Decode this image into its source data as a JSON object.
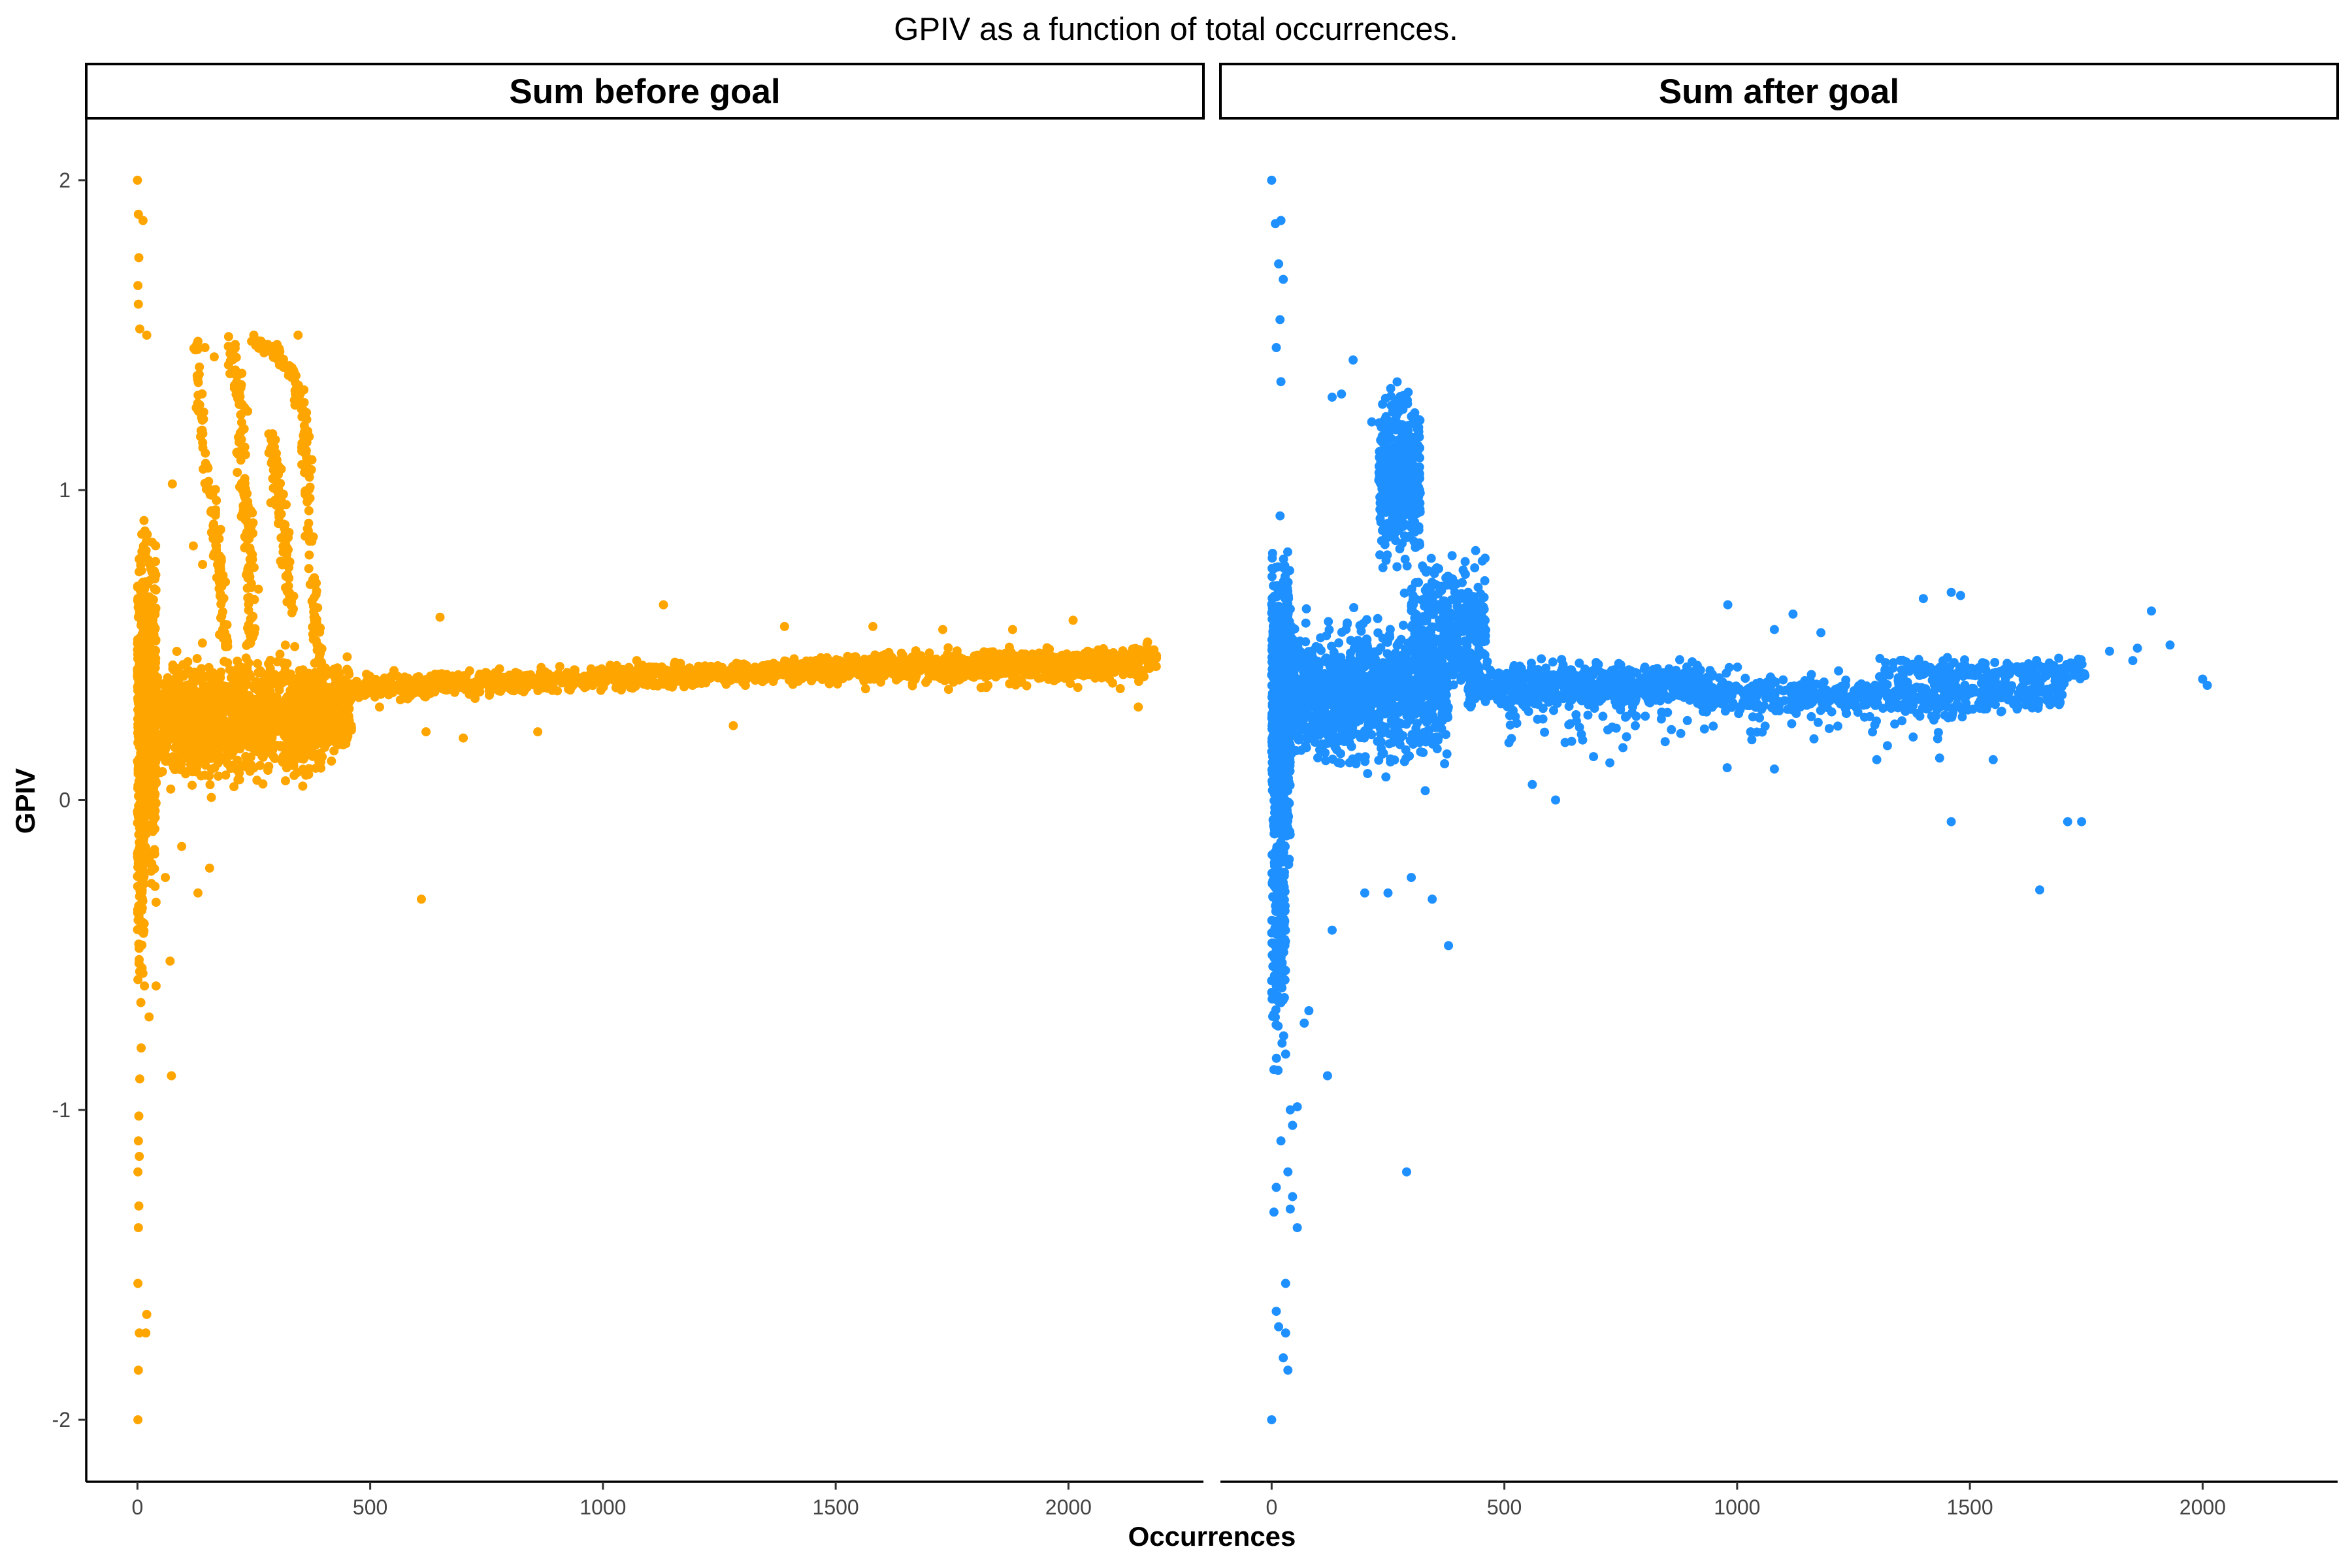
{
  "chart_data": {
    "type": "scatter",
    "title": "GPIV as a function of total occurrences.",
    "xlabel": "Occurrences",
    "ylabel": "GPIV",
    "ylim": [
      -2.2,
      2.2
    ],
    "grid": false,
    "legend": "none",
    "yticks": [
      -2,
      -1,
      0,
      1,
      2
    ],
    "ytick_labels": [
      "-2",
      "-1",
      "0",
      "1",
      "2"
    ],
    "panels": [
      {
        "strip": "Sum before goal",
        "color": "#FFA500",
        "xlim": [
          -110,
          2290
        ],
        "xticks": [
          0,
          500,
          1000,
          1500,
          2000
        ],
        "xtick_labels": [
          "0",
          "500",
          "1000",
          "1500",
          "2000"
        ],
        "points": [
          [
            0,
            2.0
          ],
          [
            2,
            1.89
          ],
          [
            12,
            1.87
          ],
          [
            3,
            1.75
          ],
          [
            1,
            1.66
          ],
          [
            2,
            1.6
          ],
          [
            5,
            1.52
          ],
          [
            20,
            1.5
          ],
          [
            1,
            -2.0
          ],
          [
            2,
            -1.84
          ],
          [
            4,
            -1.72
          ],
          [
            18,
            -1.72
          ],
          [
            20,
            -1.66
          ],
          [
            1,
            -1.56
          ],
          [
            2,
            -1.38
          ],
          [
            3,
            -1.31
          ],
          [
            1,
            -1.2
          ],
          [
            4,
            -1.15
          ],
          [
            2,
            -1.1
          ],
          [
            3,
            -1.02
          ],
          [
            5,
            -0.9
          ],
          [
            8,
            -0.8
          ],
          [
            25,
            -0.7
          ],
          [
            15,
            -0.6
          ],
          [
            40,
            -0.6
          ],
          [
            73,
            -0.89
          ],
          [
            70,
            -0.52
          ],
          [
            40,
            -0.33
          ],
          [
            60,
            -0.25
          ],
          [
            95,
            -0.15
          ],
          [
            130,
            -0.3
          ],
          [
            155,
            -0.22
          ],
          [
            610,
            -0.32
          ],
          [
            130,
            1.48
          ],
          [
            145,
            1.46
          ],
          [
            165,
            1.43
          ],
          [
            210,
            1.47
          ],
          [
            250,
            1.5
          ],
          [
            300,
            1.47
          ],
          [
            345,
            1.5
          ],
          [
            75,
            1.02
          ],
          [
            120,
            0.82
          ],
          [
            180,
            0.78
          ],
          [
            140,
            0.76
          ],
          [
            650,
            0.59
          ],
          [
            1130,
            0.63
          ],
          [
            1390,
            0.56
          ],
          [
            1580,
            0.56
          ],
          [
            1730,
            0.55
          ],
          [
            1880,
            0.55
          ],
          [
            2010,
            0.58
          ],
          [
            2170,
            0.51
          ],
          [
            320,
            0.22
          ],
          [
            360,
            0.14
          ],
          [
            430,
            0.28
          ],
          [
            520,
            0.3
          ],
          [
            620,
            0.22
          ],
          [
            700,
            0.2
          ],
          [
            860,
            0.22
          ],
          [
            1280,
            0.24
          ],
          [
            2150,
            0.3
          ]
        ]
      },
      {
        "strip": "Sum after goal",
        "color": "#1E90FF",
        "xlim": [
          -110,
          2290
        ],
        "xticks": [
          0,
          500,
          1000,
          1500,
          2000
        ],
        "xtick_labels": [
          "0",
          "500",
          "1000",
          "1500",
          "2000"
        ],
        "points": [
          [
            0,
            2.0
          ],
          [
            8,
            1.86
          ],
          [
            20,
            1.87
          ],
          [
            15,
            1.73
          ],
          [
            25,
            1.68
          ],
          [
            18,
            1.55
          ],
          [
            10,
            1.46
          ],
          [
            20,
            1.35
          ],
          [
            130,
            1.3
          ],
          [
            150,
            1.31
          ],
          [
            175,
            1.42
          ],
          [
            215,
            1.22
          ],
          [
            0,
            -2.0
          ],
          [
            10,
            -1.65
          ],
          [
            15,
            -1.7
          ],
          [
            30,
            -1.72
          ],
          [
            25,
            -1.8
          ],
          [
            35,
            -1.84
          ],
          [
            30,
            -1.56
          ],
          [
            40,
            -1.32
          ],
          [
            45,
            -1.28
          ],
          [
            55,
            -1.38
          ],
          [
            5,
            -1.33
          ],
          [
            10,
            -1.25
          ],
          [
            35,
            -1.2
          ],
          [
            20,
            -1.1
          ],
          [
            45,
            -1.05
          ],
          [
            40,
            -1.0
          ],
          [
            55,
            -0.99
          ],
          [
            5,
            -0.87
          ],
          [
            30,
            -0.82
          ],
          [
            70,
            -0.72
          ],
          [
            80,
            -0.68
          ],
          [
            120,
            -0.89
          ],
          [
            290,
            -1.2
          ],
          [
            130,
            -0.42
          ],
          [
            200,
            -0.3
          ],
          [
            250,
            -0.3
          ],
          [
            300,
            -0.25
          ],
          [
            345,
            -0.32
          ],
          [
            380,
            -0.47
          ],
          [
            1460,
            -0.07
          ],
          [
            1650,
            -0.29
          ],
          [
            1710,
            -0.07
          ],
          [
            1740,
            -0.07
          ],
          [
            1400,
            0.65
          ],
          [
            1460,
            0.67
          ],
          [
            1480,
            0.66
          ],
          [
            1890,
            0.61
          ],
          [
            1860,
            0.49
          ],
          [
            1930,
            0.5
          ],
          [
            2000,
            0.39
          ],
          [
            2010,
            0.37
          ],
          [
            1800,
            0.48
          ],
          [
            1850,
            0.45
          ],
          [
            1550,
            0.13
          ],
          [
            1300,
            0.13
          ],
          [
            1080,
            0.1
          ],
          [
            560,
            0.05
          ],
          [
            610,
            0.0
          ],
          [
            330,
            0.03
          ],
          [
            980,
            0.63
          ],
          [
            1120,
            0.6
          ],
          [
            1080,
            0.55
          ],
          [
            1180,
            0.54
          ]
        ]
      }
    ]
  }
}
